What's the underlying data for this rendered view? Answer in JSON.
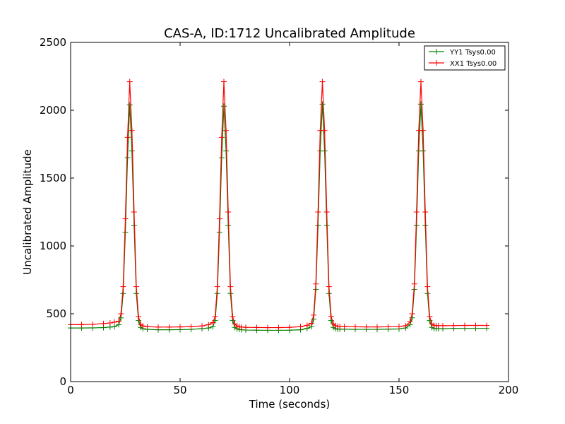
{
  "chart_data": {
    "type": "line",
    "title": "CAS-A, ID:1712 Uncalibrated Amplitude",
    "xlabel": "Time (seconds)",
    "ylabel": "Uncalibrated Amplitude",
    "xlim": [
      0,
      200
    ],
    "ylim": [
      0,
      2500
    ],
    "xticks": [
      "0",
      "50",
      "100",
      "150",
      "200"
    ],
    "yticks": [
      "0",
      "500",
      "1000",
      "1500",
      "2000",
      "2500"
    ],
    "grid": false,
    "legend_position": "top-right",
    "marker": "+",
    "x": [
      0,
      5,
      10,
      15,
      18,
      20,
      22,
      23,
      24,
      25,
      26,
      27,
      28,
      29,
      30,
      31,
      32,
      33,
      35,
      40,
      45,
      50,
      55,
      60,
      63,
      65,
      66,
      67,
      68,
      69,
      70,
      71,
      72,
      73,
      74,
      75,
      76,
      77,
      78,
      80,
      85,
      90,
      95,
      100,
      105,
      108,
      110,
      111,
      112,
      113,
      114,
      115,
      116,
      117,
      118,
      119,
      120,
      121,
      122,
      123,
      125,
      130,
      135,
      140,
      145,
      150,
      153,
      155,
      156,
      157,
      158,
      159,
      160,
      161,
      162,
      163,
      164,
      165,
      166,
      167,
      168,
      170,
      175,
      180,
      185,
      190
    ],
    "series": [
      {
        "name": "YY1 Tsys0.00",
        "color": "#008000",
        "values": [
          395,
          395,
          396,
          398,
          402,
          405,
          420,
          470,
          650,
          1100,
          1650,
          2040,
          1700,
          1150,
          650,
          450,
          400,
          390,
          385,
          382,
          382,
          383,
          385,
          390,
          395,
          405,
          450,
          650,
          1100,
          1650,
          2030,
          1700,
          1150,
          650,
          450,
          400,
          390,
          385,
          382,
          380,
          379,
          378,
          378,
          379,
          382,
          392,
          405,
          460,
          680,
          1150,
          1700,
          2045,
          1700,
          1150,
          650,
          450,
          400,
          390,
          386,
          386,
          386,
          385,
          385,
          385,
          386,
          388,
          395,
          420,
          470,
          680,
          1150,
          1700,
          2045,
          1700,
          1150,
          650,
          450,
          400,
          392,
          390,
          390,
          390,
          392,
          393,
          393,
          393
        ]
      },
      {
        "name": "XX1 Tsys0.00",
        "color": "#ff0000",
        "values": [
          420,
          420,
          422,
          428,
          432,
          438,
          445,
          500,
          700,
          1200,
          1800,
          2210,
          1850,
          1250,
          700,
          480,
          420,
          410,
          405,
          402,
          402,
          403,
          405,
          410,
          420,
          435,
          480,
          700,
          1200,
          1800,
          2210,
          1850,
          1250,
          700,
          480,
          425,
          410,
          405,
          402,
          400,
          399,
          398,
          398,
          400,
          405,
          415,
          430,
          490,
          720,
          1250,
          1850,
          2210,
          1850,
          1250,
          700,
          480,
          425,
          412,
          408,
          406,
          405,
          404,
          403,
          403,
          404,
          406,
          412,
          440,
          500,
          720,
          1250,
          1850,
          2210,
          1850,
          1250,
          700,
          480,
          425,
          415,
          412,
          412,
          412,
          413,
          414,
          414,
          414
        ]
      }
    ]
  }
}
